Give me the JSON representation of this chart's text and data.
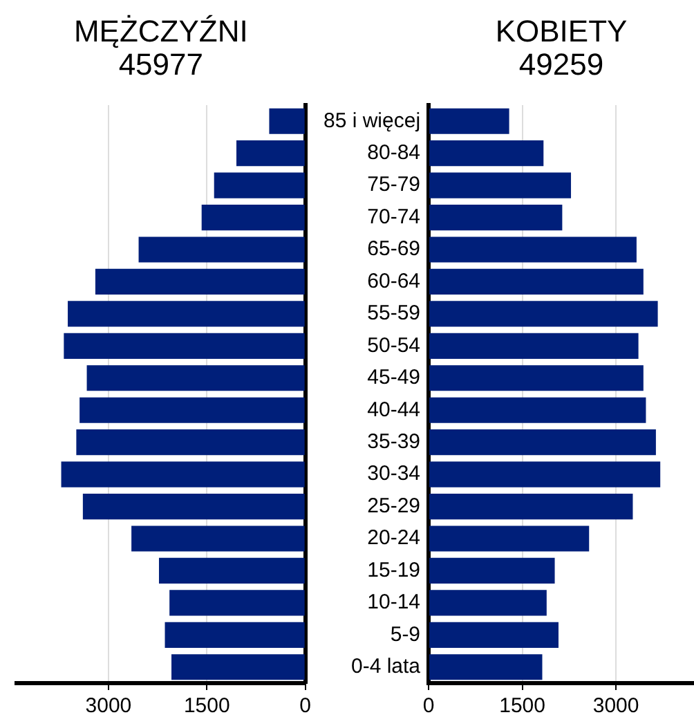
{
  "chart_data": [
    {
      "type": "bar",
      "orientation": "horizontal",
      "title": "MĘŻCZYŹNI",
      "subtitle": "45977",
      "categories": [
        null,
        null,
        null,
        null,
        null,
        null,
        null,
        null,
        null,
        null,
        null,
        null,
        null,
        null,
        null,
        null,
        null,
        null
      ],
      "values": [
        550,
        1050,
        1390,
        1580,
        2540,
        3200,
        3620,
        3680,
        3330,
        3440,
        3490,
        3720,
        3390,
        2650,
        2230,
        2070,
        2140,
        2040
      ],
      "color": "#001f7a",
      "xlim": [
        4400,
        0
      ],
      "xticks": [
        3000,
        1500,
        0
      ],
      "grid": "x",
      "legend": false,
      "tick_labels": "x"
    },
    {
      "type": "bar",
      "orientation": "horizontal",
      "title": "KOBIETY",
      "subtitle": "49259",
      "categories": [
        "85 i więcej",
        "80-84",
        "75-79",
        "70-74",
        "65-69",
        "60-64",
        "55-59",
        "50-54",
        "45-49",
        "40-44",
        "35-39",
        "30-34",
        "25-29",
        "20-24",
        "15-19",
        "10-14",
        "5-9",
        "0-4 lata"
      ],
      "values": [
        1290,
        1840,
        2280,
        2140,
        3330,
        3440,
        3670,
        3360,
        3440,
        3480,
        3640,
        3710,
        3270,
        2570,
        2020,
        1890,
        2080,
        1820
      ],
      "color": "#001f7a",
      "xlim": [
        0,
        4250
      ],
      "xticks": [
        0,
        1500,
        3000
      ],
      "grid": "x",
      "legend": false
    }
  ]
}
